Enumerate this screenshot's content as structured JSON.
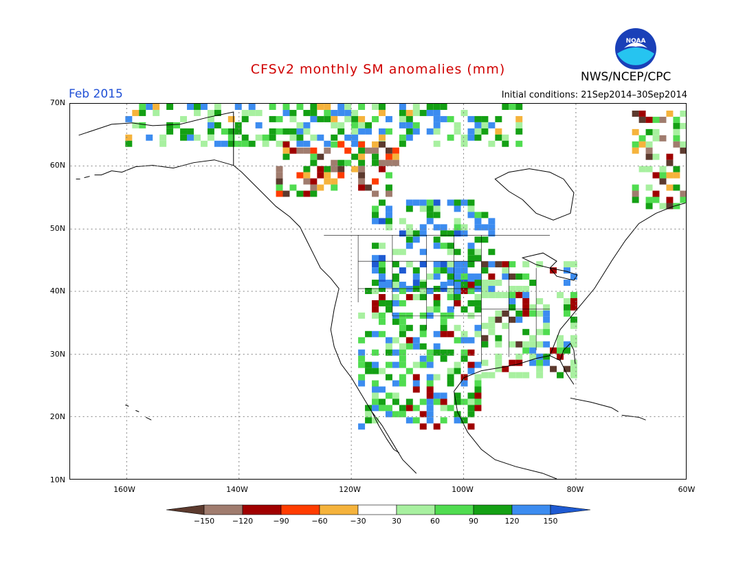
{
  "title": "CFSv2 monthly SM anomalies (mm)",
  "agency": "NWS/NCEP/CPC",
  "valid_month": "Feb 2015",
  "initial_conditions": "Initial conditions: 21Sep2014–30Sep2014",
  "logo": {
    "icon": "noaa-logo-icon",
    "text": "NOAA"
  },
  "axes": {
    "lat_labels": [
      "70N",
      "60N",
      "50N",
      "40N",
      "30N",
      "20N",
      "10N"
    ],
    "lon_labels": [
      "160W",
      "140W",
      "120W",
      "100W",
      "80W",
      "60W"
    ],
    "lon_range": [
      -172,
      -60
    ],
    "lat_range": [
      10,
      70
    ]
  },
  "legend": {
    "labels": [
      "−150",
      "−120",
      "−90",
      "−60",
      "−30",
      "30",
      "60",
      "90",
      "120",
      "150"
    ],
    "colors": [
      "#5c3a2e",
      "#a07c6e",
      "#a00000",
      "#ff3c00",
      "#f5b33c",
      "#ffffff",
      "#a8f0a0",
      "#50dc50",
      "#14a014",
      "#3c8cf0",
      "#1e5ad2"
    ]
  },
  "colors": {
    "title": "#d00000",
    "month": "#1f4fd6",
    "frame": "#000000",
    "gridline": "#808080"
  }
}
